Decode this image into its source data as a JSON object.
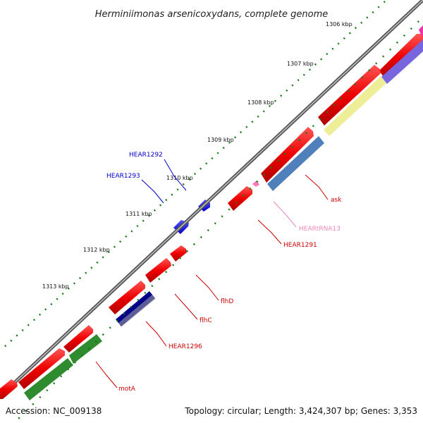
{
  "title": "Herminiimonas arsenicoxydans, complete genome",
  "footer": {
    "accession": "Accession: NC_009138",
    "summary": "Topology: circular; Length: 3,424,307 bp; Genes: 3,353"
  },
  "ticks": [
    "1306 kbp",
    "1307 kbp",
    "1308 kbp",
    "1309 kbp",
    "1310 kbp",
    "1311 kbp",
    "1312 kbp",
    "1313 kbp"
  ],
  "genes": [
    {
      "label": "HEAR1292",
      "color": "#0000cc"
    },
    {
      "label": "HEAR1293",
      "color": "#0000cc"
    },
    {
      "label": "ask",
      "color": "#cc0000"
    },
    {
      "label": "HEARtRNA13",
      "color": "#ee88bb"
    },
    {
      "label": "HEAR1291",
      "color": "#cc0000"
    },
    {
      "label": "flhD",
      "color": "#cc0000"
    },
    {
      "label": "flhC",
      "color": "#cc0000"
    },
    {
      "label": "HEAR1296",
      "color": "#cc0000"
    },
    {
      "label": "motA",
      "color": "#cc0000"
    }
  ],
  "colors": {
    "backbone": "#808080",
    "cds": "#ee0000",
    "forward_gene": "#0000ee",
    "trna": "#ff77bb",
    "tick_dots": "#1a7a1a",
    "cog_green": "#2e8b2e",
    "cog_steelblue": "#5080bb",
    "cog_khaki": "#eeee99",
    "cog_purple": "#7766dd",
    "cog_navy": "#000088",
    "cog_gray": "#aaaaaa"
  }
}
